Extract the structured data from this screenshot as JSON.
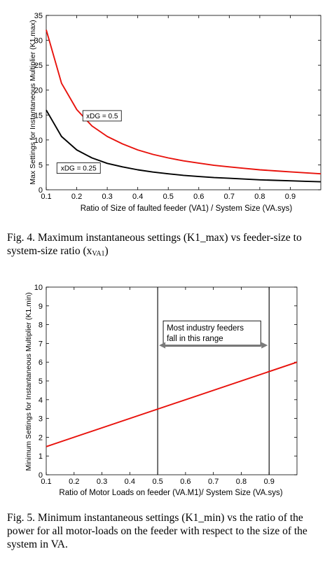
{
  "fig4": {
    "caption_main": "Fig. 4. Maximum instantaneous settings (K1_max) vs feeder-size to system-size ratio (x",
    "caption_sub": "VA1",
    "caption_end": ")",
    "chart_data": {
      "type": "line",
      "title": "",
      "xlabel": "Ratio of Size of faulted feeder (VA1) / System Size (VA.sys)",
      "ylabel": "Max Settings for Instantaneous Multiplier (K1.max)",
      "xlim": [
        0.1,
        1.0
      ],
      "ylim": [
        0,
        35
      ],
      "xticks": [
        "0.1",
        "0.2",
        "0.3",
        "0.4",
        "0.5",
        "0.6",
        "0.7",
        "0.8",
        "0.9"
      ],
      "yticks": [
        "0",
        "5",
        "10",
        "15",
        "20",
        "25",
        "30",
        "35"
      ],
      "grid": false,
      "series": [
        {
          "name": "xDG = 0.5",
          "color": "#e8120c",
          "x": [
            0.1,
            0.15,
            0.2,
            0.25,
            0.3,
            0.35,
            0.4,
            0.45,
            0.5,
            0.55,
            0.6,
            0.65,
            0.7,
            0.75,
            0.8,
            0.85,
            0.9,
            0.95,
            1.0
          ],
          "y": [
            32.1,
            21.4,
            16.1,
            12.8,
            10.7,
            9.2,
            8.0,
            7.1,
            6.4,
            5.8,
            5.35,
            4.9,
            4.6,
            4.3,
            4.0,
            3.8,
            3.6,
            3.4,
            3.2
          ]
        },
        {
          "name": "xDG = 0.25",
          "color": "#000000",
          "x": [
            0.1,
            0.15,
            0.2,
            0.25,
            0.3,
            0.35,
            0.4,
            0.45,
            0.5,
            0.55,
            0.6,
            0.65,
            0.7,
            0.75,
            0.8,
            0.85,
            0.9,
            0.95,
            1.0
          ],
          "y": [
            16.0,
            10.7,
            8.0,
            6.4,
            5.3,
            4.6,
            4.0,
            3.55,
            3.2,
            2.9,
            2.65,
            2.45,
            2.3,
            2.15,
            2.0,
            1.9,
            1.8,
            1.7,
            1.6
          ]
        }
      ],
      "annotations": [
        "xDG = 0.5",
        "xDG = 0.25"
      ]
    }
  },
  "fig5": {
    "caption": "Fig. 5.   Minimum instantaneous settings (K1_min) vs the ratio of the power for all motor-loads on the feeder with respect to the size of the system in VA.",
    "chart_data": {
      "type": "line",
      "title": "",
      "xlabel": "Ratio of Motor Loads on feeder (VA.M1)/ System Size (VA.sys)",
      "ylabel": "Minimum Settings for Instantaneous Multiplier (K1.min)",
      "xlim": [
        0.1,
        1.0
      ],
      "ylim": [
        0,
        10
      ],
      "xticks": [
        "0.1",
        "0.2",
        "0.3",
        "0.4",
        "0.5",
        "0.6",
        "0.7",
        "0.8",
        "0.9"
      ],
      "yticks": [
        "0",
        "1",
        "2",
        "3",
        "4",
        "5",
        "6",
        "7",
        "8",
        "9",
        "10"
      ],
      "grid": false,
      "series": [
        {
          "name": "",
          "color": "#e8120c",
          "x": [
            0.1,
            1.0
          ],
          "y": [
            1.5,
            6.0
          ]
        }
      ],
      "vlines": [
        0.5,
        0.9
      ],
      "annotation": {
        "line1": "Most industry feeders",
        "line2": "fall in this range"
      }
    }
  }
}
